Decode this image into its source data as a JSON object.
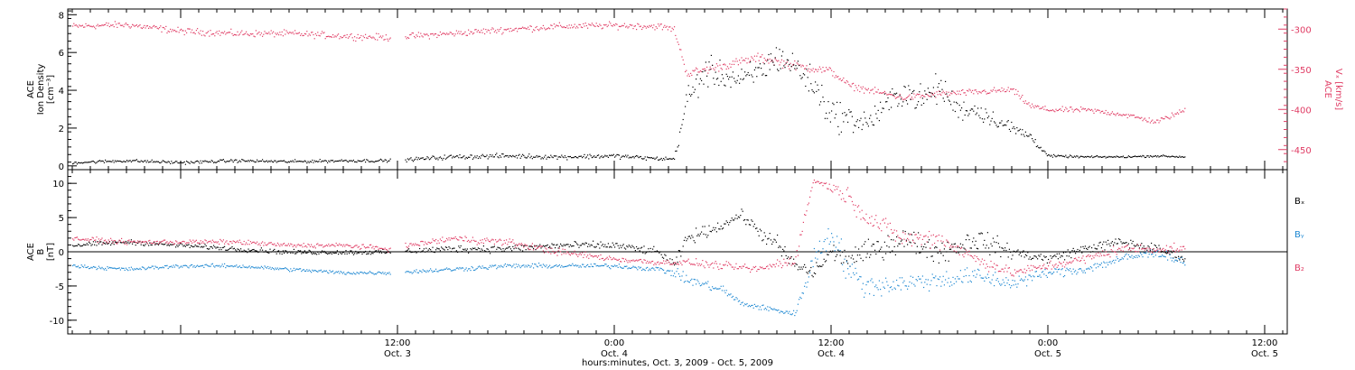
{
  "chart_data": {
    "type": "scatter",
    "time_axis": {
      "xlabel": "hours:minutes, Oct.  3, 2009 - Oct.  5, 2009",
      "range_hours": [
        -6.25,
        61.25
      ],
      "major_ticks": [
        {
          "hours": 12,
          "time": "12:00",
          "day": "Oct. 3"
        },
        {
          "hours": 24,
          "time": "0:00",
          "day": "Oct. 4"
        },
        {
          "hours": 36,
          "time": "12:00",
          "day": "Oct. 4"
        },
        {
          "hours": 48,
          "time": "0:00",
          "day": "Oct. 5"
        },
        {
          "hours": 60,
          "time": "12:00",
          "day": "Oct. 5"
        }
      ]
    },
    "panels": [
      {
        "ylabel_lines": [
          "ACE",
          "Ion Density",
          "[cm⁻³]"
        ],
        "ylim": [
          -0.2,
          8.3
        ],
        "yticks": [
          "0",
          "2",
          "4",
          "6",
          "8"
        ],
        "yticks_values": [
          0,
          2,
          4,
          6,
          8
        ],
        "right_axis": {
          "ylabel_lines": [
            "ACE",
            "Vₓ [km/s]"
          ],
          "ylim": [
            -475,
            -275
          ],
          "yticks": [
            "-300",
            "-350",
            "-400",
            "-450"
          ],
          "yticks_values": [
            -300,
            -350,
            -400,
            -450
          ],
          "color": "#e03c64"
        },
        "series": [
          {
            "color": "#000000",
            "axis": "left",
            "x": [
              -6,
              -3,
              0,
              3,
              6,
              9,
              11.5,
              15,
              18,
              21,
              24,
              26.5,
              27.3,
              28,
              29,
              30,
              31,
              32,
              33,
              34,
              35,
              36,
              37,
              38,
              39,
              40,
              41,
              42,
              43,
              44,
              45,
              46,
              47,
              48,
              50,
              52,
              54,
              55.6
            ],
            "y": [
              0.2,
              0.3,
              0.2,
              0.3,
              0.25,
              0.3,
              0.3,
              0.5,
              0.55,
              0.5,
              0.55,
              0.4,
              0.4,
              3.5,
              5.0,
              4.8,
              4.5,
              5.0,
              5.8,
              5.3,
              4.3,
              2.8,
              2.5,
              2.3,
              3.2,
              4.0,
              3.5,
              4.2,
              3.0,
              3.0,
              2.5,
              2.0,
              1.6,
              0.55,
              0.5,
              0.5,
              0.55,
              0.5
            ],
            "spread": [
              0.12,
              0.12,
              0.12,
              0.12,
              0.12,
              0.12,
              0.12,
              0.18,
              0.18,
              0.18,
              0.18,
              0.15,
              0.15,
              1.2,
              1.2,
              1.0,
              1.0,
              1.2,
              1.2,
              1.0,
              1.3,
              1.3,
              1.0,
              1.0,
              1.1,
              1.1,
              1.1,
              1.2,
              0.8,
              0.8,
              0.6,
              0.6,
              0.4,
              0.1,
              0.08,
              0.08,
              0.08,
              0.08
            ]
          },
          {
            "color": "#e03c64",
            "axis": "right",
            "x": [
              -6,
              -3,
              0,
              3,
              6,
              9,
              11.5,
              15,
              18,
              21,
              24,
              26.5,
              27.3,
              28,
              30,
              32,
              34,
              36,
              37,
              38,
              40,
              42,
              44,
              46,
              47,
              48,
              50,
              52,
              54,
              55.6
            ],
            "y": [
              -296,
              -294,
              -302,
              -305,
              -305,
              -308,
              -310,
              -305,
              -300,
              -296,
              -295,
              -296,
              -300,
              -355,
              -345,
              -335,
              -345,
              -352,
              -370,
              -375,
              -385,
              -380,
              -378,
              -375,
              -395,
              -400,
              -400,
              -405,
              -415,
              -400
            ],
            "spread": [
              6,
              6,
              6,
              6,
              6,
              6,
              6,
              6,
              6,
              6,
              6,
              6,
              6,
              8,
              8,
              8,
              8,
              8,
              6,
              6,
              6,
              6,
              6,
              6,
              6,
              5,
              5,
              5,
              5,
              5
            ]
          }
        ]
      },
      {
        "ylabel_lines": [
          "ACE",
          "B",
          "[nT]"
        ],
        "ylim": [
          -12,
          12
        ],
        "yticks": [
          "10",
          "5",
          "0",
          "-5",
          "-10"
        ],
        "yticks_values": [
          10,
          5,
          0,
          -5,
          -10
        ],
        "zero_line": true,
        "series": [
          {
            "name": "Bx",
            "color": "#000000",
            "x": [
              -6,
              -3,
              0,
              3,
              6,
              9,
              11.5,
              15,
              18,
              21,
              24,
              26.5,
              27.3,
              28,
              30,
              31,
              32,
              33,
              34,
              35,
              36,
              37,
              38,
              40,
              42,
              44,
              46,
              48,
              50,
              52,
              54,
              55.6
            ],
            "y": [
              1.0,
              1.5,
              1.0,
              0.5,
              0.0,
              0.0,
              0.0,
              0.5,
              0.5,
              1.0,
              1.0,
              0.0,
              -2.0,
              2.0,
              4.0,
              5.5,
              3.0,
              1.0,
              -2.0,
              -3.0,
              0.0,
              -1.0,
              0.0,
              2.0,
              0.0,
              2.0,
              0.0,
              -1.0,
              0.5,
              1.5,
              0.5,
              -1.0
            ],
            "spread": [
              0.5,
              0.5,
              0.5,
              0.5,
              0.5,
              0.5,
              0.5,
              0.8,
              0.8,
              0.8,
              0.8,
              0.8,
              1.0,
              1.5,
              1.0,
              1.0,
              1.5,
              2.0,
              1.5,
              1.5,
              2.0,
              2.0,
              2.5,
              2.5,
              2.5,
              2.5,
              1.5,
              1.0,
              1.0,
              1.0,
              1.0,
              0.8
            ]
          },
          {
            "name": "By",
            "color": "#1e88d2",
            "x": [
              -6,
              -3,
              0,
              3,
              6,
              9,
              11.5,
              15,
              18,
              21,
              24,
              26.5,
              27.3,
              28,
              30,
              31,
              32,
              33,
              34,
              35,
              36,
              37,
              38,
              40,
              42,
              44,
              46,
              48,
              50,
              52,
              54,
              55.6
            ],
            "y": [
              -2.0,
              -2.5,
              -2.0,
              -2.0,
              -2.5,
              -3.0,
              -3.0,
              -2.5,
              -2.0,
              -2.0,
              -2.0,
              -2.5,
              -3.0,
              -4.0,
              -5.5,
              -7.5,
              -8.0,
              -8.5,
              -9.0,
              -1.0,
              3.0,
              -3.0,
              -5.0,
              -4.5,
              -4.0,
              -3.5,
              -4.5,
              -3.0,
              -2.5,
              -1.0,
              0.0,
              -1.5
            ],
            "spread": [
              0.4,
              0.4,
              0.4,
              0.4,
              0.4,
              0.4,
              0.4,
              0.5,
              0.5,
              0.5,
              0.5,
              0.5,
              1.0,
              1.0,
              1.0,
              0.6,
              0.6,
              0.6,
              0.6,
              2.5,
              3.0,
              3.0,
              2.5,
              2.0,
              2.0,
              2.0,
              1.5,
              1.0,
              1.0,
              1.0,
              1.0,
              0.8
            ]
          },
          {
            "name": "Bz",
            "color": "#e03c64",
            "x": [
              -6,
              -3,
              0,
              3,
              6,
              9,
              11.5,
              15,
              18,
              21,
              24,
              26.5,
              27.3,
              28,
              30,
              32,
              34,
              35,
              36,
              37,
              38,
              40,
              42,
              44,
              46,
              48,
              50,
              52,
              54,
              55.6
            ],
            "y": [
              2.0,
              1.5,
              1.5,
              1.5,
              1.0,
              1.0,
              0.5,
              2.0,
              1.5,
              0.0,
              -1.0,
              -1.5,
              -1.5,
              -1.5,
              -2.0,
              -2.5,
              -1.0,
              10.5,
              9.5,
              8.0,
              5.0,
              2.0,
              2.0,
              -1.0,
              -3.0,
              -2.0,
              -1.0,
              0.5,
              0.5,
              0.5
            ],
            "spread": [
              0.5,
              0.5,
              0.5,
              0.5,
              0.5,
              0.5,
              0.5,
              0.8,
              0.8,
              0.8,
              0.6,
              0.6,
              0.6,
              0.8,
              0.8,
              0.8,
              1.5,
              0.6,
              1.0,
              2.0,
              2.0,
              2.0,
              2.0,
              1.5,
              1.0,
              1.0,
              1.0,
              1.0,
              1.0,
              0.8
            ]
          }
        ]
      }
    ],
    "legend": {
      "placement": "right",
      "entries": [
        {
          "label": "Bₓ",
          "color": "#000000"
        },
        {
          "label": "Bᵧ",
          "color": "#1e88d2"
        },
        {
          "label": "B₂",
          "color": "#e03c64"
        }
      ]
    }
  }
}
